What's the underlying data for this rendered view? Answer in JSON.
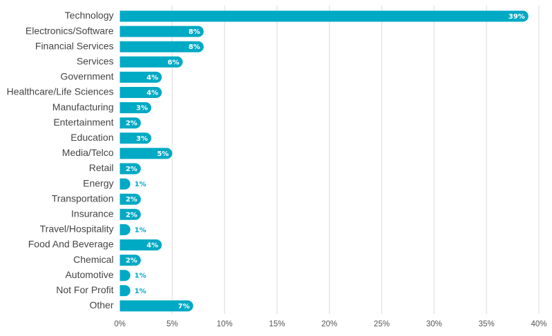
{
  "chart_data": {
    "type": "bar",
    "orientation": "horizontal",
    "categories": [
      "Technology",
      "Electronics/Software",
      "Financial Services",
      "Services",
      "Government",
      "Healthcare/Life Sciences",
      "Manufacturing",
      "Entertainment",
      "Education",
      "Media/Telco",
      "Retail",
      "Energy",
      "Transportation",
      "Insurance",
      "Travel/Hospitality",
      "Food And Beverage",
      "Chemical",
      "Automotive",
      "Not For Profit",
      "Other"
    ],
    "values": [
      39,
      8,
      8,
      6,
      4,
      4,
      3,
      2,
      3,
      5,
      2,
      1,
      2,
      2,
      1,
      4,
      2,
      1,
      1,
      7
    ],
    "value_labels": [
      "39%",
      "8%",
      "8%",
      "6%",
      "4%",
      "4%",
      "3%",
      "2%",
      "3%",
      "5%",
      "2%",
      "1%",
      "2%",
      "2%",
      "1%",
      "4%",
      "2%",
      "1%",
      "1%",
      "7%"
    ],
    "x_ticks": [
      0,
      5,
      10,
      15,
      20,
      25,
      30,
      35,
      40
    ],
    "x_tick_labels": [
      "0%",
      "5%",
      "10%",
      "15%",
      "20%",
      "25%",
      "30%",
      "35%",
      "40%"
    ],
    "xlim": [
      0,
      40
    ],
    "grid": true,
    "bar_color": "#00a9c4",
    "title": "",
    "xlabel": "",
    "ylabel": ""
  }
}
